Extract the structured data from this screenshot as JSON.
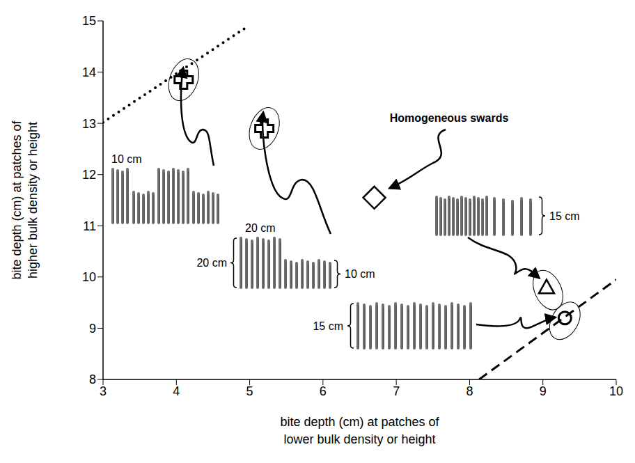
{
  "chart_data": {
    "type": "scatter",
    "x_label": "bite depth (cm) at patches of lower bulk density or height",
    "y_label": "bite depth (cm) at patches of higher bulk density or height",
    "xlim": [
      3,
      10
    ],
    "ylim": [
      8,
      15
    ],
    "xticks": [
      3,
      4,
      5,
      6,
      7,
      8,
      9,
      10
    ],
    "yticks": [
      8,
      9,
      10,
      11,
      12,
      13,
      14,
      15
    ],
    "grid": false,
    "series": [
      {
        "type": "scatter",
        "marker": "cross",
        "color": "#000000",
        "x": [
          4.1,
          5.2
        ],
        "values": [
          13.85,
          12.9
        ]
      },
      {
        "type": "scatter",
        "marker": "diamond",
        "color": "#000000",
        "x": [
          6.7
        ],
        "values": [
          11.55
        ]
      },
      {
        "type": "scatter",
        "marker": "triangle",
        "color": "#000000",
        "x": [
          9.05
        ],
        "values": [
          9.8
        ]
      },
      {
        "type": "scatter",
        "marker": "circle",
        "color": "#000000",
        "x": [
          9.3
        ],
        "values": [
          9.2
        ]
      },
      {
        "type": "line",
        "line_style": "dotted",
        "color": "#000000",
        "x": [
          3,
          4.95
        ],
        "values": [
          13.02,
          14.87
        ]
      },
      {
        "type": "line",
        "line_style": "dashed",
        "color": "#000000",
        "x": [
          8.13,
          10
        ],
        "values": [
          8,
          9.95
        ]
      }
    ],
    "annotations": [
      "Homogeneous swards",
      "10 cm",
      "20 cm",
      "20 cm",
      "10 cm",
      "15 cm",
      "15 cm"
    ]
  }
}
